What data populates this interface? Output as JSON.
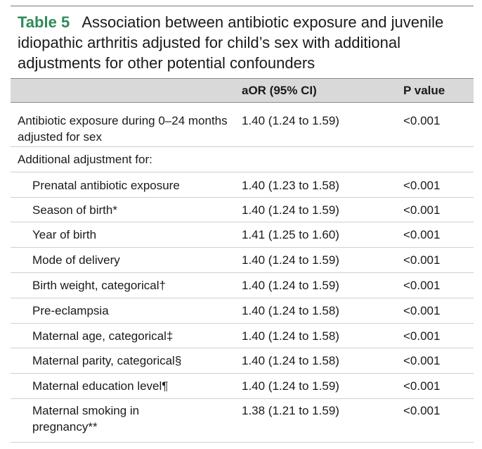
{
  "caption": {
    "label": "Table 5",
    "text": "Association between antibiotic exposure and juvenile idiopathic arthritis adjusted for child’s sex with additional adjustments for other potential confounders"
  },
  "header": {
    "col1": "",
    "col2": "aOR (95% CI)",
    "col3": "P value"
  },
  "rows": [
    {
      "label": "Antibiotic exposure during 0–24 months adjusted for sex",
      "aor": "1.40 (1.24 to 1.59)",
      "p": "<0.001"
    },
    {
      "label": "Additional adjustment for:",
      "aor": "",
      "p": ""
    },
    {
      "label": "Prenatal antibiotic exposure",
      "aor": "1.40 (1.23 to 1.58)",
      "p": "<0.001"
    },
    {
      "label": "Season of birth*",
      "aor": "1.40 (1.24 to 1.59)",
      "p": "<0.001"
    },
    {
      "label": "Year of birth",
      "aor": "1.41 (1.25 to 1.60)",
      "p": "<0.001"
    },
    {
      "label": "Mode of delivery",
      "aor": "1.40 (1.24 to 1.59)",
      "p": "<0.001"
    },
    {
      "label": "Birth weight, categorical†",
      "aor": "1.40 (1.24 to 1.59)",
      "p": "<0.001"
    },
    {
      "label": "Pre-eclampsia",
      "aor": "1.40 (1.24 to 1.58)",
      "p": "<0.001"
    },
    {
      "label": "Maternal age, categorical‡",
      "aor": "1.40 (1.24 to 1.58)",
      "p": "<0.001"
    },
    {
      "label": "Maternal parity, categorical§",
      "aor": "1.40 (1.24 to 1.58)",
      "p": "<0.001"
    },
    {
      "label": "Maternal education level¶",
      "aor": "1.40 (1.24 to 1.59)",
      "p": "<0.001"
    },
    {
      "label": "Maternal smoking in pregnancy**",
      "aor": "1.38 (1.21 to 1.59)",
      "p": "<0.001"
    }
  ]
}
